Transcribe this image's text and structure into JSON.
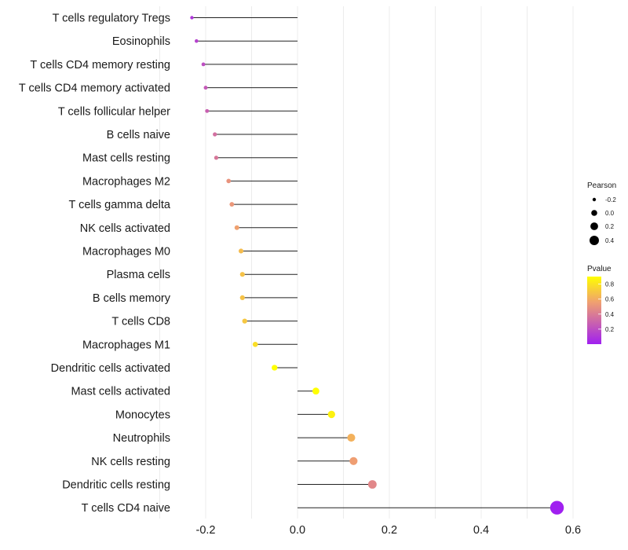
{
  "chart_data": {
    "type": "lollipop",
    "title": "",
    "xlabel": "",
    "ylabel": "",
    "xlim": [
      -0.3,
      0.63
    ],
    "xticks": [
      -0.2,
      0.0,
      0.2,
      0.4,
      0.6
    ],
    "xtick_labels": [
      "-0.2",
      "0.0",
      "0.2",
      "0.4",
      "0.6"
    ],
    "grid": true,
    "categories": [
      "T cells regulatory  Tregs",
      "Eosinophils",
      "T cells CD4 memory resting",
      "T cells CD4 memory activated",
      "T cells follicular helper",
      "B cells naive",
      "Mast cells resting",
      "Macrophages M2",
      "T cells gamma delta",
      "NK cells activated",
      "Macrophages M0",
      "Plasma cells",
      "B cells memory",
      "T cells CD8",
      "Macrophages M1",
      "Dendritic cells activated",
      "Mast cells activated",
      "Monocytes",
      "Neutrophils",
      "NK cells resting",
      "Dendritic cells resting",
      "T cells CD4 naive"
    ],
    "pearson": [
      -0.23,
      -0.22,
      -0.205,
      -0.2,
      -0.197,
      -0.18,
      -0.177,
      -0.15,
      -0.143,
      -0.132,
      -0.123,
      -0.12,
      -0.12,
      -0.115,
      -0.092,
      -0.05,
      0.04,
      0.074,
      0.117,
      0.122,
      0.163,
      0.565
    ],
    "pvalue": [
      0.1,
      0.15,
      0.2,
      0.25,
      0.28,
      0.35,
      0.38,
      0.5,
      0.52,
      0.56,
      0.66,
      0.68,
      0.68,
      0.7,
      0.78,
      0.92,
      0.95,
      0.85,
      0.62,
      0.55,
      0.45,
      0.0
    ],
    "legend": {
      "size_title": "Pearson",
      "size_values": [
        -0.2,
        0.0,
        0.2,
        0.4
      ],
      "size_labels": [
        "-0.2",
        "0.0",
        "0.2",
        "0.4"
      ],
      "color_title": "Pvalue",
      "color_range": [
        0.0,
        0.9
      ],
      "color_ticks": [
        0.2,
        0.4,
        0.6,
        0.8
      ],
      "color_tick_labels": [
        "0.2",
        "0.4",
        "0.6",
        "0.8"
      ],
      "color_low": "#a020f0",
      "color_mid": "#f0a070",
      "color_high": "#ffff00",
      "placement": "right"
    }
  }
}
